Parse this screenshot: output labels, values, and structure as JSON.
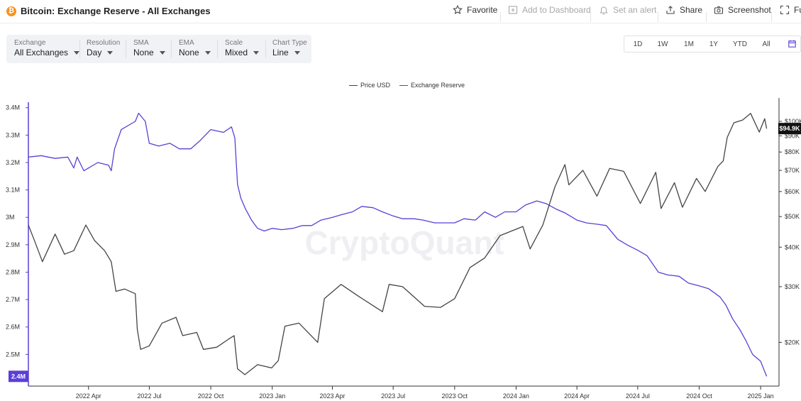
{
  "header": {
    "title": "Bitcoin: Exchange Reserve - All Exchanges",
    "coin_icon_glyph": "₿",
    "actions": [
      {
        "label": "Favorite",
        "icon": "star-icon",
        "disabled": false
      },
      {
        "label": "Add to Dashboard",
        "icon": "add-dashboard-icon",
        "disabled": true
      },
      {
        "label": "Set an alert",
        "icon": "bell-icon",
        "disabled": true
      },
      {
        "label": "Share",
        "icon": "share-icon",
        "disabled": false
      },
      {
        "label": "Screenshot",
        "icon": "camera-icon",
        "disabled": false
      },
      {
        "label": "Fu",
        "icon": "fullscreen-icon",
        "disabled": false
      }
    ]
  },
  "controls": [
    {
      "label": "Exchange",
      "value": "All Exchanges"
    },
    {
      "label": "Resolution",
      "value": "Day"
    },
    {
      "label": "SMA",
      "value": "None"
    },
    {
      "label": "EMA",
      "value": "None"
    },
    {
      "label": "Scale",
      "value": "Mixed"
    },
    {
      "label": "Chart Type",
      "value": "Line"
    }
  ],
  "ranges": [
    "1D",
    "1W",
    "1M",
    "1Y",
    "YTD",
    "All"
  ],
  "legend": [
    {
      "name": "Price USD",
      "color": "#444444"
    },
    {
      "name": "Exchange Reserve",
      "color": "#5b3fd6"
    }
  ],
  "watermark": "CryptoQuant",
  "chart_data": {
    "type": "line",
    "x_ticks": [
      "2022 Apr",
      "2022 Jul",
      "2022 Oct",
      "2023 Jan",
      "2023 Apr",
      "2023 Jul",
      "2023 Oct",
      "2024 Jan",
      "2024 Apr",
      "2024 Jul",
      "2024 Oct",
      "2025 Jan"
    ],
    "left_axis": {
      "ticks": [
        "3.4M",
        "3.3M",
        "3.2M",
        "3.1M",
        "3M",
        "2.9M",
        "2.8M",
        "2.7M",
        "2.6M",
        "2.5M"
      ],
      "ylim": [
        2.4,
        3.42
      ],
      "unit": "M",
      "current_label": "2.4M",
      "current_label_color": "#5b3fd6"
    },
    "right_axis": {
      "scale": "log",
      "ticks": [
        "$20K",
        "$30K",
        "$40K",
        "$50K",
        "$60K",
        "$70K",
        "$80K",
        "$90K",
        "$100K"
      ],
      "ylim": [
        15000,
        115000
      ],
      "current_label": "$94.9K",
      "current_label_color": "#111111"
    },
    "series": [
      {
        "name": "Exchange Reserve",
        "axis": "left",
        "color": "#5b3fd6",
        "points": [
          [
            "2022-01-01",
            3.22
          ],
          [
            "2022-01-20",
            3.225
          ],
          [
            "2022-02-10",
            3.215
          ],
          [
            "2022-03-01",
            3.22
          ],
          [
            "2022-03-10",
            3.18
          ],
          [
            "2022-03-15",
            3.22
          ],
          [
            "2022-03-25",
            3.17
          ],
          [
            "2022-04-15",
            3.2
          ],
          [
            "2022-05-01",
            3.19
          ],
          [
            "2022-05-05",
            3.17
          ],
          [
            "2022-05-10",
            3.25
          ],
          [
            "2022-05-20",
            3.32
          ],
          [
            "2022-06-10",
            3.35
          ],
          [
            "2022-06-15",
            3.38
          ],
          [
            "2022-06-25",
            3.35
          ],
          [
            "2022-07-01",
            3.27
          ],
          [
            "2022-07-15",
            3.26
          ],
          [
            "2022-08-01",
            3.27
          ],
          [
            "2022-08-15",
            3.25
          ],
          [
            "2022-09-01",
            3.25
          ],
          [
            "2022-09-15",
            3.28
          ],
          [
            "2022-10-01",
            3.32
          ],
          [
            "2022-10-20",
            3.31
          ],
          [
            "2022-11-01",
            3.33
          ],
          [
            "2022-11-06",
            3.29
          ],
          [
            "2022-11-10",
            3.12
          ],
          [
            "2022-11-15",
            3.07
          ],
          [
            "2022-11-22",
            3.03
          ],
          [
            "2022-12-01",
            2.99
          ],
          [
            "2022-12-10",
            2.96
          ],
          [
            "2022-12-20",
            2.95
          ],
          [
            "2023-01-01",
            2.96
          ],
          [
            "2023-01-15",
            2.955
          ],
          [
            "2023-02-01",
            2.96
          ],
          [
            "2023-02-15",
            2.97
          ],
          [
            "2023-03-01",
            2.97
          ],
          [
            "2023-03-15",
            2.99
          ],
          [
            "2023-04-01",
            3.0
          ],
          [
            "2023-04-15",
            3.01
          ],
          [
            "2023-05-01",
            3.02
          ],
          [
            "2023-05-15",
            3.04
          ],
          [
            "2023-06-01",
            3.035
          ],
          [
            "2023-06-15",
            3.02
          ],
          [
            "2023-07-01",
            3.005
          ],
          [
            "2023-07-15",
            2.995
          ],
          [
            "2023-08-01",
            2.995
          ],
          [
            "2023-08-15",
            2.99
          ],
          [
            "2023-09-01",
            2.98
          ],
          [
            "2023-09-15",
            2.98
          ],
          [
            "2023-10-01",
            2.98
          ],
          [
            "2023-10-15",
            2.995
          ],
          [
            "2023-11-01",
            2.99
          ],
          [
            "2023-11-15",
            3.02
          ],
          [
            "2023-12-01",
            3.0
          ],
          [
            "2023-12-15",
            3.02
          ],
          [
            "2024-01-01",
            3.02
          ],
          [
            "2024-01-15",
            3.045
          ],
          [
            "2024-02-01",
            3.06
          ],
          [
            "2024-02-15",
            3.05
          ],
          [
            "2024-03-01",
            3.03
          ],
          [
            "2024-03-15",
            3.015
          ],
          [
            "2024-04-01",
            2.99
          ],
          [
            "2024-04-15",
            2.98
          ],
          [
            "2024-05-01",
            2.975
          ],
          [
            "2024-05-15",
            2.97
          ],
          [
            "2024-06-01",
            2.92
          ],
          [
            "2024-06-15",
            2.9
          ],
          [
            "2024-07-01",
            2.88
          ],
          [
            "2024-07-15",
            2.86
          ],
          [
            "2024-08-01",
            2.8
          ],
          [
            "2024-08-15",
            2.79
          ],
          [
            "2024-09-01",
            2.785
          ],
          [
            "2024-09-15",
            2.76
          ],
          [
            "2024-10-01",
            2.75
          ],
          [
            "2024-10-15",
            2.74
          ],
          [
            "2024-11-01",
            2.71
          ],
          [
            "2024-11-10",
            2.68
          ],
          [
            "2024-11-20",
            2.63
          ],
          [
            "2024-12-01",
            2.59
          ],
          [
            "2024-12-10",
            2.55
          ],
          [
            "2024-12-20",
            2.5
          ],
          [
            "2025-01-01",
            2.475
          ],
          [
            "2025-01-05",
            2.45
          ],
          [
            "2025-01-10",
            2.42
          ]
        ]
      },
      {
        "name": "Price USD",
        "axis": "right",
        "color": "#444444",
        "points": [
          [
            "2022-01-01",
            47000
          ],
          [
            "2022-01-10",
            42000
          ],
          [
            "2022-01-22",
            36000
          ],
          [
            "2022-02-10",
            44000
          ],
          [
            "2022-02-24",
            38000
          ],
          [
            "2022-03-10",
            39000
          ],
          [
            "2022-03-28",
            47000
          ],
          [
            "2022-04-10",
            42000
          ],
          [
            "2022-04-25",
            39000
          ],
          [
            "2022-05-05",
            36000
          ],
          [
            "2022-05-12",
            29000
          ],
          [
            "2022-05-25",
            29500
          ],
          [
            "2022-06-10",
            28500
          ],
          [
            "2022-06-13",
            22000
          ],
          [
            "2022-06-18",
            19000
          ],
          [
            "2022-07-01",
            19500
          ],
          [
            "2022-07-20",
            23000
          ],
          [
            "2022-08-10",
            24000
          ],
          [
            "2022-08-20",
            21000
          ],
          [
            "2022-09-10",
            21500
          ],
          [
            "2022-09-20",
            19000
          ],
          [
            "2022-10-10",
            19300
          ],
          [
            "2022-10-28",
            20500
          ],
          [
            "2022-11-05",
            21000
          ],
          [
            "2022-11-10",
            16500
          ],
          [
            "2022-11-21",
            15800
          ],
          [
            "2022-12-10",
            17000
          ],
          [
            "2022-12-31",
            16600
          ],
          [
            "2023-01-10",
            17500
          ],
          [
            "2023-01-20",
            22500
          ],
          [
            "2023-02-10",
            23000
          ],
          [
            "2023-03-10",
            20000
          ],
          [
            "2023-03-20",
            27500
          ],
          [
            "2023-04-14",
            30500
          ],
          [
            "2023-05-10",
            28000
          ],
          [
            "2023-06-15",
            25000
          ],
          [
            "2023-06-25",
            30500
          ],
          [
            "2023-07-15",
            30000
          ],
          [
            "2023-08-17",
            26000
          ],
          [
            "2023-09-10",
            25800
          ],
          [
            "2023-10-01",
            27500
          ],
          [
            "2023-10-24",
            34500
          ],
          [
            "2023-11-15",
            37000
          ],
          [
            "2023-12-08",
            43500
          ],
          [
            "2024-01-11",
            46500
          ],
          [
            "2024-01-22",
            39500
          ],
          [
            "2024-02-10",
            47000
          ],
          [
            "2024-02-28",
            62000
          ],
          [
            "2024-03-14",
            73000
          ],
          [
            "2024-03-20",
            63000
          ],
          [
            "2024-04-10",
            70000
          ],
          [
            "2024-05-01",
            58000
          ],
          [
            "2024-05-20",
            71000
          ],
          [
            "2024-06-10",
            69500
          ],
          [
            "2024-07-05",
            55000
          ],
          [
            "2024-07-28",
            69000
          ],
          [
            "2024-08-05",
            53000
          ],
          [
            "2024-08-25",
            64000
          ],
          [
            "2024-09-06",
            53500
          ],
          [
            "2024-09-27",
            66000
          ],
          [
            "2024-10-10",
            60000
          ],
          [
            "2024-10-29",
            72000
          ],
          [
            "2024-11-06",
            75000
          ],
          [
            "2024-11-12",
            89000
          ],
          [
            "2024-11-22",
            99000
          ],
          [
            "2024-12-05",
            101000
          ],
          [
            "2024-12-17",
            106000
          ],
          [
            "2024-12-30",
            92500
          ],
          [
            "2025-01-07",
            102000
          ],
          [
            "2025-01-10",
            94900
          ]
        ]
      }
    ],
    "legend_position": "top-center",
    "grid": false
  }
}
